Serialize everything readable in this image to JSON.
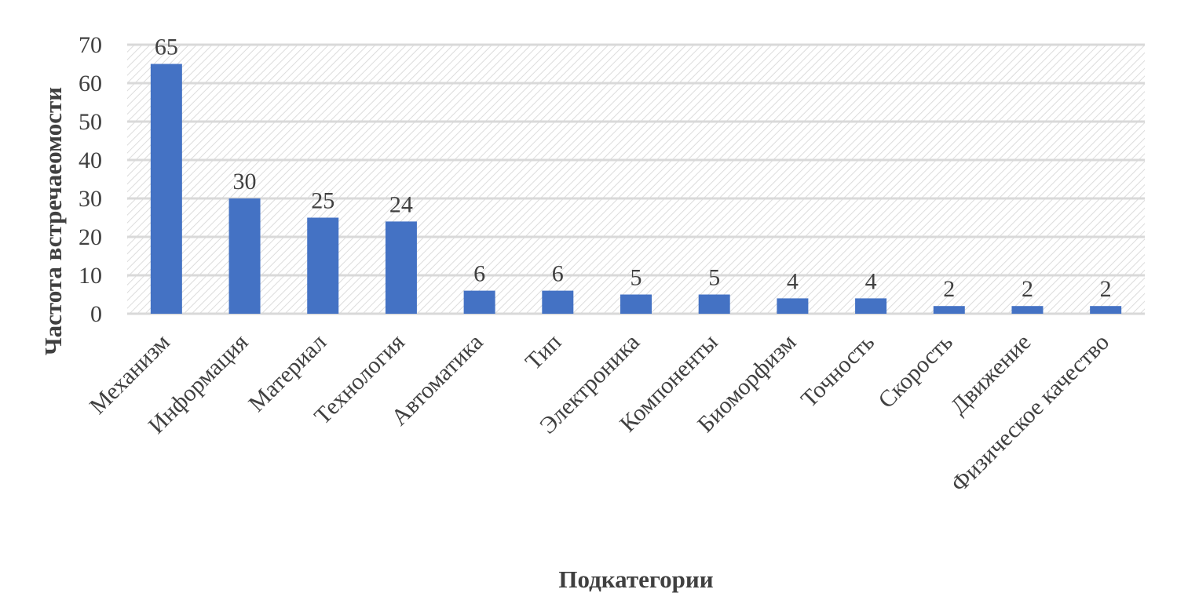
{
  "chart_data": {
    "type": "bar",
    "title": "",
    "xlabel": "Подкатегории",
    "ylabel": "Частота встречаеомости",
    "categories": [
      "Механизм",
      "Информация",
      "Материал",
      "Технология",
      "Автоматика",
      "Тип",
      "Электроника",
      "Компоненты",
      "Биоморфизм",
      "Точность",
      "Скорость",
      "Движение",
      "Физическое качество"
    ],
    "values": [
      65,
      30,
      25,
      24,
      6,
      6,
      5,
      5,
      4,
      4,
      2,
      2,
      2
    ],
    "ylim": [
      0,
      70
    ],
    "yticks": [
      0,
      10,
      20,
      30,
      40,
      50,
      60,
      70
    ],
    "grid": true,
    "legend": "none",
    "bar_color": "#4472C4",
    "grid_color": "#d9d9d9",
    "text_color": "#404040"
  }
}
